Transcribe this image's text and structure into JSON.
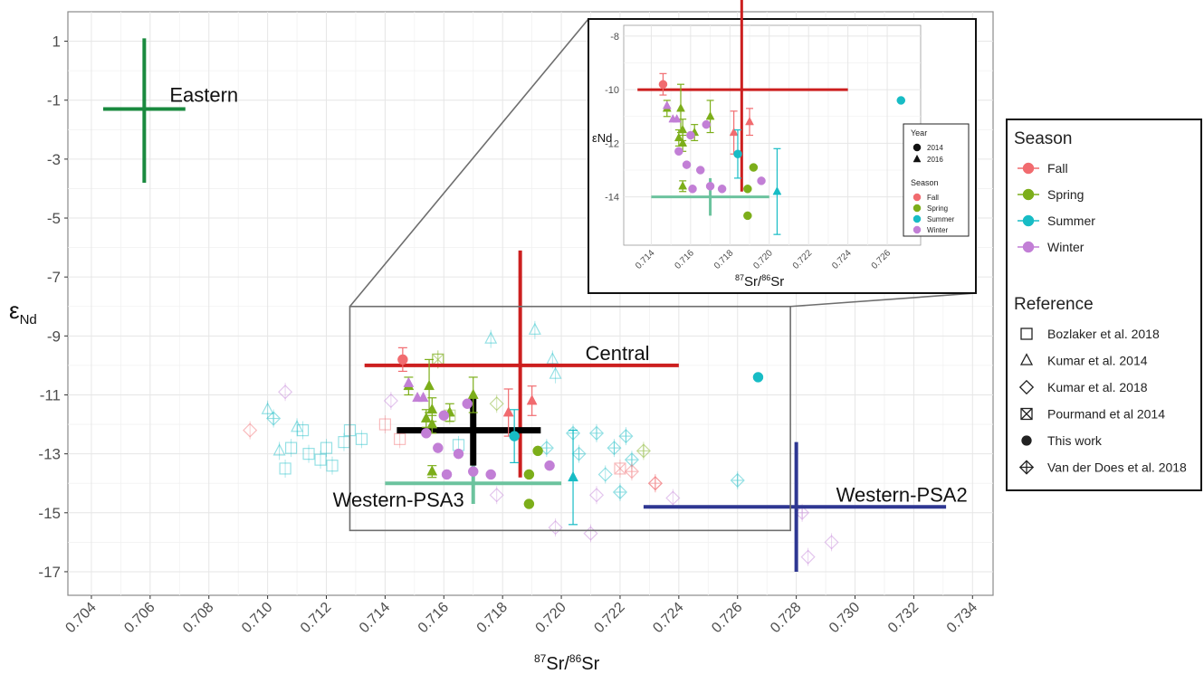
{
  "chart_data": [
    {
      "type": "scatter",
      "panel": "main",
      "xlabel": "87Sr/86Sr",
      "xlabel_parts": {
        "sup1": "87",
        "base1": "Sr/",
        "sup2": "86",
        "base2": "Sr"
      },
      "ylabel": "εNd",
      "ylabel_parts": {
        "base": "ε",
        "sub": "Nd"
      },
      "xlim": [
        0.7032,
        0.7347
      ],
      "ylim": [
        -17.8,
        2.0
      ],
      "x_ticks": [
        "0.704",
        "0.706",
        "0.708",
        "0.710",
        "0.712",
        "0.714",
        "0.716",
        "0.718",
        "0.720",
        "0.722",
        "0.724",
        "0.726",
        "0.728",
        "0.730",
        "0.732",
        "0.734"
      ],
      "y_ticks": [
        "1",
        "-1",
        "-3",
        "-5",
        "-7",
        "-9",
        "-11",
        "-13",
        "-15",
        "-17"
      ],
      "grid": true,
      "legend": "right",
      "source_regions": [
        {
          "label": "Eastern",
          "color": "#1a8a3f",
          "x": 0.7058,
          "y": -1.3,
          "x_range": [
            0.7044,
            0.7072
          ],
          "y_range": [
            -3.8,
            1.1
          ]
        },
        {
          "label": "Central",
          "color": "#cc1f1f",
          "x": 0.7186,
          "y": -10.0,
          "x_range": [
            0.7133,
            0.724
          ],
          "y_range": [
            -13.8,
            -6.1
          ]
        },
        {
          "label": "Western-PSA3",
          "color": "#6cc39e",
          "x": 0.717,
          "y": -14.0,
          "x_range": [
            0.714,
            0.72
          ],
          "y_range": [
            -14.7,
            -13.3
          ]
        },
        {
          "label": "Western-PSA2",
          "color": "#2e3792",
          "x": 0.728,
          "y": -14.8,
          "x_range": [
            0.7228,
            0.7331
          ],
          "y_range": [
            -17.0,
            -12.6
          ]
        },
        {
          "label": "",
          "color": "#000000",
          "x": 0.717,
          "y": -12.2,
          "x_range": [
            0.7144,
            0.7193
          ],
          "y_range": [
            -13.4,
            -11.0
          ]
        }
      ],
      "this_work": [
        {
          "season": "Fall",
          "year": "2014",
          "x": 0.7146,
          "y": -9.8,
          "err": 0.4
        },
        {
          "season": "Fall",
          "year": "2016",
          "x": 0.7182,
          "y": -11.6,
          "err": 0.8
        },
        {
          "season": "Fall",
          "year": "2016",
          "x": 0.719,
          "y": -11.2,
          "err": 0.5
        },
        {
          "season": "Spring",
          "year": "2016",
          "x": 0.7148,
          "y": -10.7,
          "err": 0.3
        },
        {
          "season": "Spring",
          "year": "2016",
          "x": 0.7155,
          "y": -10.7,
          "err": 0.9
        },
        {
          "season": "Spring",
          "year": "2016",
          "x": 0.7156,
          "y": -11.5,
          "err": 0.4
        },
        {
          "season": "Spring",
          "year": "2016",
          "x": 0.7154,
          "y": -11.8,
          "err": 0.3
        },
        {
          "season": "Spring",
          "year": "2016",
          "x": 0.7156,
          "y": -12.0,
          "err": 0.3
        },
        {
          "season": "Spring",
          "year": "2016",
          "x": 0.7162,
          "y": -11.6,
          "err": 0.3
        },
        {
          "season": "Spring",
          "year": "2016",
          "x": 0.717,
          "y": -11.0,
          "err": 0.6
        },
        {
          "season": "Spring",
          "year": "2016",
          "x": 0.7156,
          "y": -13.6,
          "err": 0.2
        },
        {
          "season": "Spring",
          "year": "2014",
          "x": 0.7192,
          "y": -12.9,
          "err": 0.0
        },
        {
          "season": "Spring",
          "year": "2014",
          "x": 0.7189,
          "y": -13.7,
          "err": 0.0
        },
        {
          "season": "Spring",
          "year": "2014",
          "x": 0.7189,
          "y": -14.7,
          "err": 0.0
        },
        {
          "season": "Summer",
          "year": "2014",
          "x": 0.7184,
          "y": -12.4,
          "err": 0.9
        },
        {
          "season": "Summer",
          "year": "2016",
          "x": 0.7204,
          "y": -13.8,
          "err": 1.6
        },
        {
          "season": "Summer",
          "year": "2014",
          "x": 0.7267,
          "y": -10.4,
          "err": 0.0
        },
        {
          "season": "Winter",
          "year": "2016",
          "x": 0.7148,
          "y": -10.6,
          "err": 0.0
        },
        {
          "season": "Winter",
          "year": "2016",
          "x": 0.7151,
          "y": -11.1,
          "err": 0.0
        },
        {
          "season": "Winter",
          "year": "2016",
          "x": 0.7153,
          "y": -11.1,
          "err": 0.0
        },
        {
          "season": "Winter",
          "year": "2014",
          "x": 0.7154,
          "y": -12.3,
          "err": 0.0
        },
        {
          "season": "Winter",
          "year": "2014",
          "x": 0.716,
          "y": -11.7,
          "err": 0.0
        },
        {
          "season": "Winter",
          "year": "2014",
          "x": 0.7168,
          "y": -11.3,
          "err": 0.0
        },
        {
          "season": "Winter",
          "year": "2014",
          "x": 0.7158,
          "y": -12.8,
          "err": 0.0
        },
        {
          "season": "Winter",
          "year": "2014",
          "x": 0.7161,
          "y": -13.7,
          "err": 0.0
        },
        {
          "season": "Winter",
          "year": "2014",
          "x": 0.7165,
          "y": -13.0,
          "err": 0.0
        },
        {
          "season": "Winter",
          "year": "2014",
          "x": 0.7176,
          "y": -13.7,
          "err": 0.0
        },
        {
          "season": "Winter",
          "year": "2014",
          "x": 0.7196,
          "y": -13.4,
          "err": 0.0
        },
        {
          "season": "Winter",
          "year": "2014",
          "x": 0.717,
          "y": -13.6,
          "err": 0.0
        }
      ],
      "reference_points": [
        {
          "ref": "Bozlaker et al. 2018",
          "season": "Summer",
          "x": 0.7108,
          "y": -12.8
        },
        {
          "ref": "Bozlaker et al. 2018",
          "season": "Summer",
          "x": 0.7112,
          "y": -12.2
        },
        {
          "ref": "Bozlaker et al. 2018",
          "season": "Summer",
          "x": 0.7114,
          "y": -13.0
        },
        {
          "ref": "Bozlaker et al. 2018",
          "season": "Summer",
          "x": 0.7118,
          "y": -13.2
        },
        {
          "ref": "Bozlaker et al. 2018",
          "season": "Summer",
          "x": 0.712,
          "y": -12.8
        },
        {
          "ref": "Bozlaker et al. 2018",
          "season": "Summer",
          "x": 0.7122,
          "y": -13.4
        },
        {
          "ref": "Bozlaker et al. 2018",
          "season": "Summer",
          "x": 0.7126,
          "y": -12.6
        },
        {
          "ref": "Bozlaker et al. 2018",
          "season": "Summer",
          "x": 0.7128,
          "y": -12.2
        },
        {
          "ref": "Bozlaker et al. 2018",
          "season": "Summer",
          "x": 0.7132,
          "y": -12.5
        },
        {
          "ref": "Bozlaker et al. 2018",
          "season": "Summer",
          "x": 0.7106,
          "y": -13.5
        },
        {
          "ref": "Bozlaker et al. 2018",
          "season": "Fall",
          "x": 0.714,
          "y": -12.0
        },
        {
          "ref": "Bozlaker et al. 2018",
          "season": "Fall",
          "x": 0.7145,
          "y": -12.5
        },
        {
          "ref": "Bozlaker et al. 2018",
          "season": "Spring",
          "x": 0.7158,
          "y": -9.8
        },
        {
          "ref": "Bozlaker et al. 2018",
          "season": "Spring",
          "x": 0.7162,
          "y": -11.7
        },
        {
          "ref": "Bozlaker et al. 2018",
          "season": "Summer",
          "x": 0.7165,
          "y": -12.7
        },
        {
          "ref": "Kumar et al. 2014",
          "season": "Summer",
          "x": 0.71,
          "y": -11.5
        },
        {
          "ref": "Kumar et al. 2014",
          "season": "Summer",
          "x": 0.711,
          "y": -12.1
        },
        {
          "ref": "Kumar et al. 2014",
          "season": "Summer",
          "x": 0.7104,
          "y": -12.9
        },
        {
          "ref": "Kumar et al. 2014",
          "season": "Summer",
          "x": 0.7176,
          "y": -9.1
        },
        {
          "ref": "Kumar et al. 2014",
          "season": "Summer",
          "x": 0.7191,
          "y": -8.8
        },
        {
          "ref": "Kumar et al. 2014",
          "season": "Summer",
          "x": 0.7197,
          "y": -9.8
        },
        {
          "ref": "Kumar et al. 2014",
          "season": "Summer",
          "x": 0.7198,
          "y": -10.3
        },
        {
          "ref": "Kumar et al. 2018",
          "season": "Fall",
          "x": 0.7094,
          "y": -12.2
        },
        {
          "ref": "Kumar et al. 2018",
          "season": "Winter",
          "x": 0.7106,
          "y": -10.9
        },
        {
          "ref": "Kumar et al. 2018",
          "season": "Winter",
          "x": 0.7142,
          "y": -11.2
        },
        {
          "ref": "Kumar et al. 2018",
          "season": "Spring",
          "x": 0.7178,
          "y": -11.3
        },
        {
          "ref": "Kumar et al. 2018",
          "season": "Winter",
          "x": 0.7178,
          "y": -14.4
        },
        {
          "ref": "Kumar et al. 2018",
          "season": "Winter",
          "x": 0.7198,
          "y": -15.5
        },
        {
          "ref": "Kumar et al. 2018",
          "season": "Winter",
          "x": 0.721,
          "y": -15.7
        },
        {
          "ref": "Kumar et al. 2018",
          "season": "Winter",
          "x": 0.7212,
          "y": -14.4
        },
        {
          "ref": "Kumar et al. 2018",
          "season": "Fall",
          "x": 0.7232,
          "y": -14.0
        },
        {
          "ref": "Kumar et al. 2018",
          "season": "Winter",
          "x": 0.7238,
          "y": -14.5
        },
        {
          "ref": "Kumar et al. 2018",
          "season": "Winter",
          "x": 0.7284,
          "y": -16.5
        },
        {
          "ref": "Kumar et al. 2018",
          "season": "Winter",
          "x": 0.7292,
          "y": -16.0
        },
        {
          "ref": "Kumar et al. 2018",
          "season": "Summer",
          "x": 0.7215,
          "y": -13.7
        },
        {
          "ref": "Pourmand et al 2014",
          "season": "Spring",
          "x": 0.7158,
          "y": -9.8
        },
        {
          "ref": "Pourmand et al 2014",
          "season": "Fall",
          "x": 0.722,
          "y": -13.5
        },
        {
          "ref": "Van der Does et al. 2018",
          "season": "Summer",
          "x": 0.7102,
          "y": -11.8
        },
        {
          "ref": "Van der Does et al. 2018",
          "season": "Spring",
          "x": 0.7228,
          "y": -12.9
        },
        {
          "ref": "Van der Does et al. 2018",
          "season": "Summer",
          "x": 0.7204,
          "y": -12.3
        },
        {
          "ref": "Van der Does et al. 2018",
          "season": "Summer",
          "x": 0.7212,
          "y": -12.3
        },
        {
          "ref": "Van der Does et al. 2018",
          "season": "Summer",
          "x": 0.7218,
          "y": -12.8
        },
        {
          "ref": "Van der Does et al. 2018",
          "season": "Summer",
          "x": 0.7222,
          "y": -12.4
        },
        {
          "ref": "Van der Does et al. 2018",
          "season": "Summer",
          "x": 0.7224,
          "y": -13.2
        },
        {
          "ref": "Van der Does et al. 2018",
          "season": "Summer",
          "x": 0.7206,
          "y": -13.0
        },
        {
          "ref": "Van der Does et al. 2018",
          "season": "Summer",
          "x": 0.7195,
          "y": -12.8
        },
        {
          "ref": "Van der Does et al. 2018",
          "season": "Summer",
          "x": 0.722,
          "y": -14.3
        },
        {
          "ref": "Van der Does et al. 2018",
          "season": "Fall",
          "x": 0.7224,
          "y": -13.6
        },
        {
          "ref": "Van der Does et al. 2018",
          "season": "Fall",
          "x": 0.7232,
          "y": -14.0
        },
        {
          "ref": "Van der Does et al. 2018",
          "season": "Summer",
          "x": 0.726,
          "y": -13.9
        },
        {
          "ref": "Van der Does et al. 2018",
          "season": "Winter",
          "x": 0.7282,
          "y": -15.0
        }
      ],
      "zoom_box": {
        "x_range": [
          0.7128,
          0.7278
        ],
        "y_range": [
          -15.6,
          -8.0
        ]
      }
    },
    {
      "type": "scatter",
      "panel": "inset",
      "xlabel": "87Sr/86Sr",
      "xlabel_parts": {
        "sup1": "87",
        "base1": "Sr/",
        "sup2": "86",
        "base2": "Sr"
      },
      "ylabel": "εNd",
      "xlim": [
        0.7126,
        0.7277
      ],
      "ylim": [
        -15.8,
        -7.6
      ],
      "x_ticks": [
        "0.714",
        "0.716",
        "0.718",
        "0.720",
        "0.722",
        "0.724",
        "0.726"
      ],
      "y_ticks": [
        "-8",
        "-10",
        "-12",
        "-14"
      ],
      "grid": true,
      "legend": "right"
    }
  ],
  "legend": {
    "season_title": "Season",
    "seasons": [
      {
        "label": "Fall",
        "color": "#f16b6f"
      },
      {
        "label": "Spring",
        "color": "#7cae1a"
      },
      {
        "label": "Summer",
        "color": "#17bcc5"
      },
      {
        "label": "Winter",
        "color": "#c27fd6"
      }
    ],
    "reference_title": "Reference",
    "references": [
      {
        "label": "Bozlaker et al. 2018",
        "shape": "square"
      },
      {
        "label": "Kumar et al. 2014",
        "shape": "triangle"
      },
      {
        "label": "Kumar et al. 2018",
        "shape": "diamond"
      },
      {
        "label": "Pourmand et al 2014",
        "shape": "square-x"
      },
      {
        "label": "This work",
        "shape": "circle"
      },
      {
        "label": "Van der Does et al. 2018",
        "shape": "diamond-plus"
      }
    ],
    "inset": {
      "year_title": "Year",
      "years": [
        {
          "label": "2014",
          "shape": "circle"
        },
        {
          "label": "2016",
          "shape": "triangle"
        }
      ],
      "season_title": "Season",
      "seasons": [
        "Fall",
        "Spring",
        "Summer",
        "Winter"
      ]
    }
  }
}
